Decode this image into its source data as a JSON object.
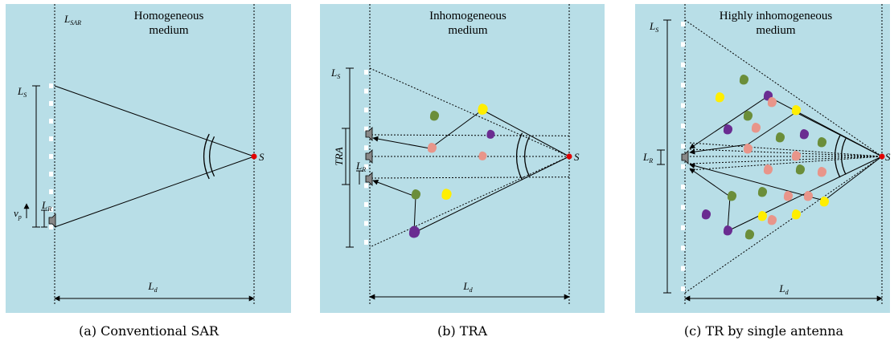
{
  "panels": [
    {
      "title": [
        "Homogeneous",
        "medium"
      ],
      "l_sar": {
        "main": "L",
        "sub": "SAR"
      },
      "l_s": {
        "main": "L",
        "sub": "S"
      },
      "v_p": {
        "main": "v",
        "sub": "p"
      },
      "l_r": {
        "main": "L",
        "sub": "R"
      },
      "source": "S",
      "l_d": {
        "main": "L",
        "sub": "d"
      },
      "caption": "(a) Conventional SAR"
    },
    {
      "title": [
        "Inhomogeneous",
        "medium"
      ],
      "l_s": {
        "main": "L",
        "sub": "S"
      },
      "tra": "TRA",
      "l_r": {
        "main": "L",
        "sub": "R"
      },
      "source": "S",
      "l_d": {
        "main": "L",
        "sub": "d"
      },
      "caption": "(b) TRA"
    },
    {
      "title": [
        "Highly inhomogeneous",
        "medium"
      ],
      "l_s": {
        "main": "L",
        "sub": "S"
      },
      "l_r": {
        "main": "L",
        "sub": "R"
      },
      "source": "S",
      "l_d": {
        "main": "L",
        "sub": "d"
      },
      "caption": "(c) TR by single antenna"
    }
  ]
}
